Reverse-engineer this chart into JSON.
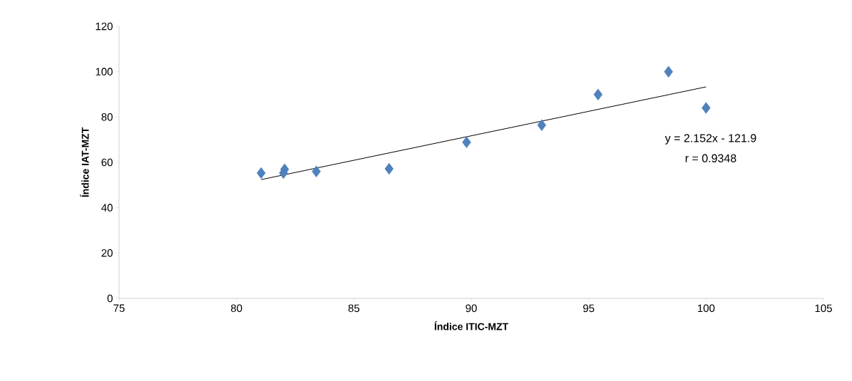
{
  "chart_data": {
    "type": "scatter",
    "xlabel": "Índice ITIC-MZT",
    "ylabel": "Índice IAT-MZT",
    "xlim": [
      75,
      105
    ],
    "xticks": [
      75,
      80,
      85,
      90,
      95,
      100,
      105
    ],
    "ylim": [
      0,
      120
    ],
    "yticks": [
      0,
      20,
      40,
      60,
      80,
      100,
      120
    ],
    "grid": false,
    "series": [
      {
        "marker": "diamond",
        "color": "#4f81bd",
        "x": [
          81.05,
          82.05,
          82.0,
          83.4,
          86.5,
          89.8,
          93.0,
          95.4,
          98.4,
          100.0
        ],
        "values": [
          55.3,
          56.9,
          55.3,
          56.0,
          57.2,
          68.9,
          76.4,
          89.9,
          100.0,
          84.0
        ]
      },
      {
        "type": "line",
        "marker": "none",
        "color": "#000000",
        "x": [
          81.05,
          100.0
        ],
        "values": [
          52.4,
          93.3
        ]
      }
    ],
    "annotations": [
      "y = 2.152x - 121.9",
      "r = 0.9348"
    ]
  }
}
